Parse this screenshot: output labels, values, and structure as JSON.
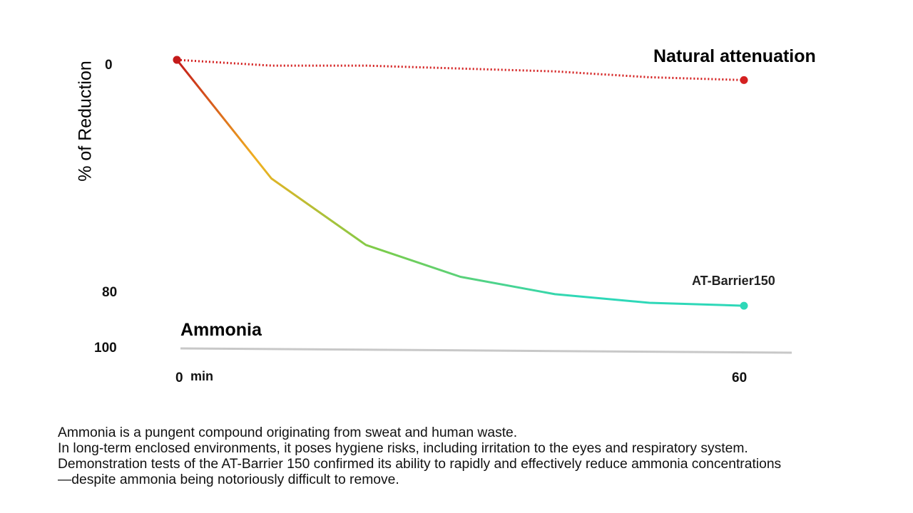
{
  "chart_data": {
    "type": "line",
    "title": "Ammonia",
    "ylabel": "% of Reduction",
    "xlabel": "min",
    "x_ticks": [
      "0",
      "60"
    ],
    "y_ticks": [
      "0",
      "80",
      "100"
    ],
    "ylim": [
      0,
      100
    ],
    "xlim": [
      0,
      60
    ],
    "y_inverted": true,
    "series": [
      {
        "name": "Natural attenuation",
        "style": "dotted",
        "color": "#d42020",
        "x": [
          0,
          10,
          20,
          30,
          40,
          50,
          60
        ],
        "y": [
          0,
          2,
          2,
          3,
          4,
          6,
          7
        ]
      },
      {
        "name": "AT-Barrier150",
        "style": "solid-gradient",
        "colors": [
          "#c41a1a",
          "#f0b020",
          "#7ccc4a",
          "#2ed8b8"
        ],
        "x": [
          0,
          10,
          20,
          30,
          40,
          50,
          60
        ],
        "y": [
          0,
          41,
          64,
          75,
          81,
          84,
          85
        ]
      }
    ],
    "baseline_color": "#c8c8c8"
  },
  "description": [
    "Ammonia is a pungent compound originating from sweat and human waste.",
    "In long-term enclosed environments, it poses hygiene risks, including irritation to the eyes and respiratory system.",
    "Demonstration tests of the AT-Barrier 150 confirmed its ability to rapidly and effectively reduce ammonia concentrations",
    "—despite ammonia being notoriously difficult to remove."
  ]
}
